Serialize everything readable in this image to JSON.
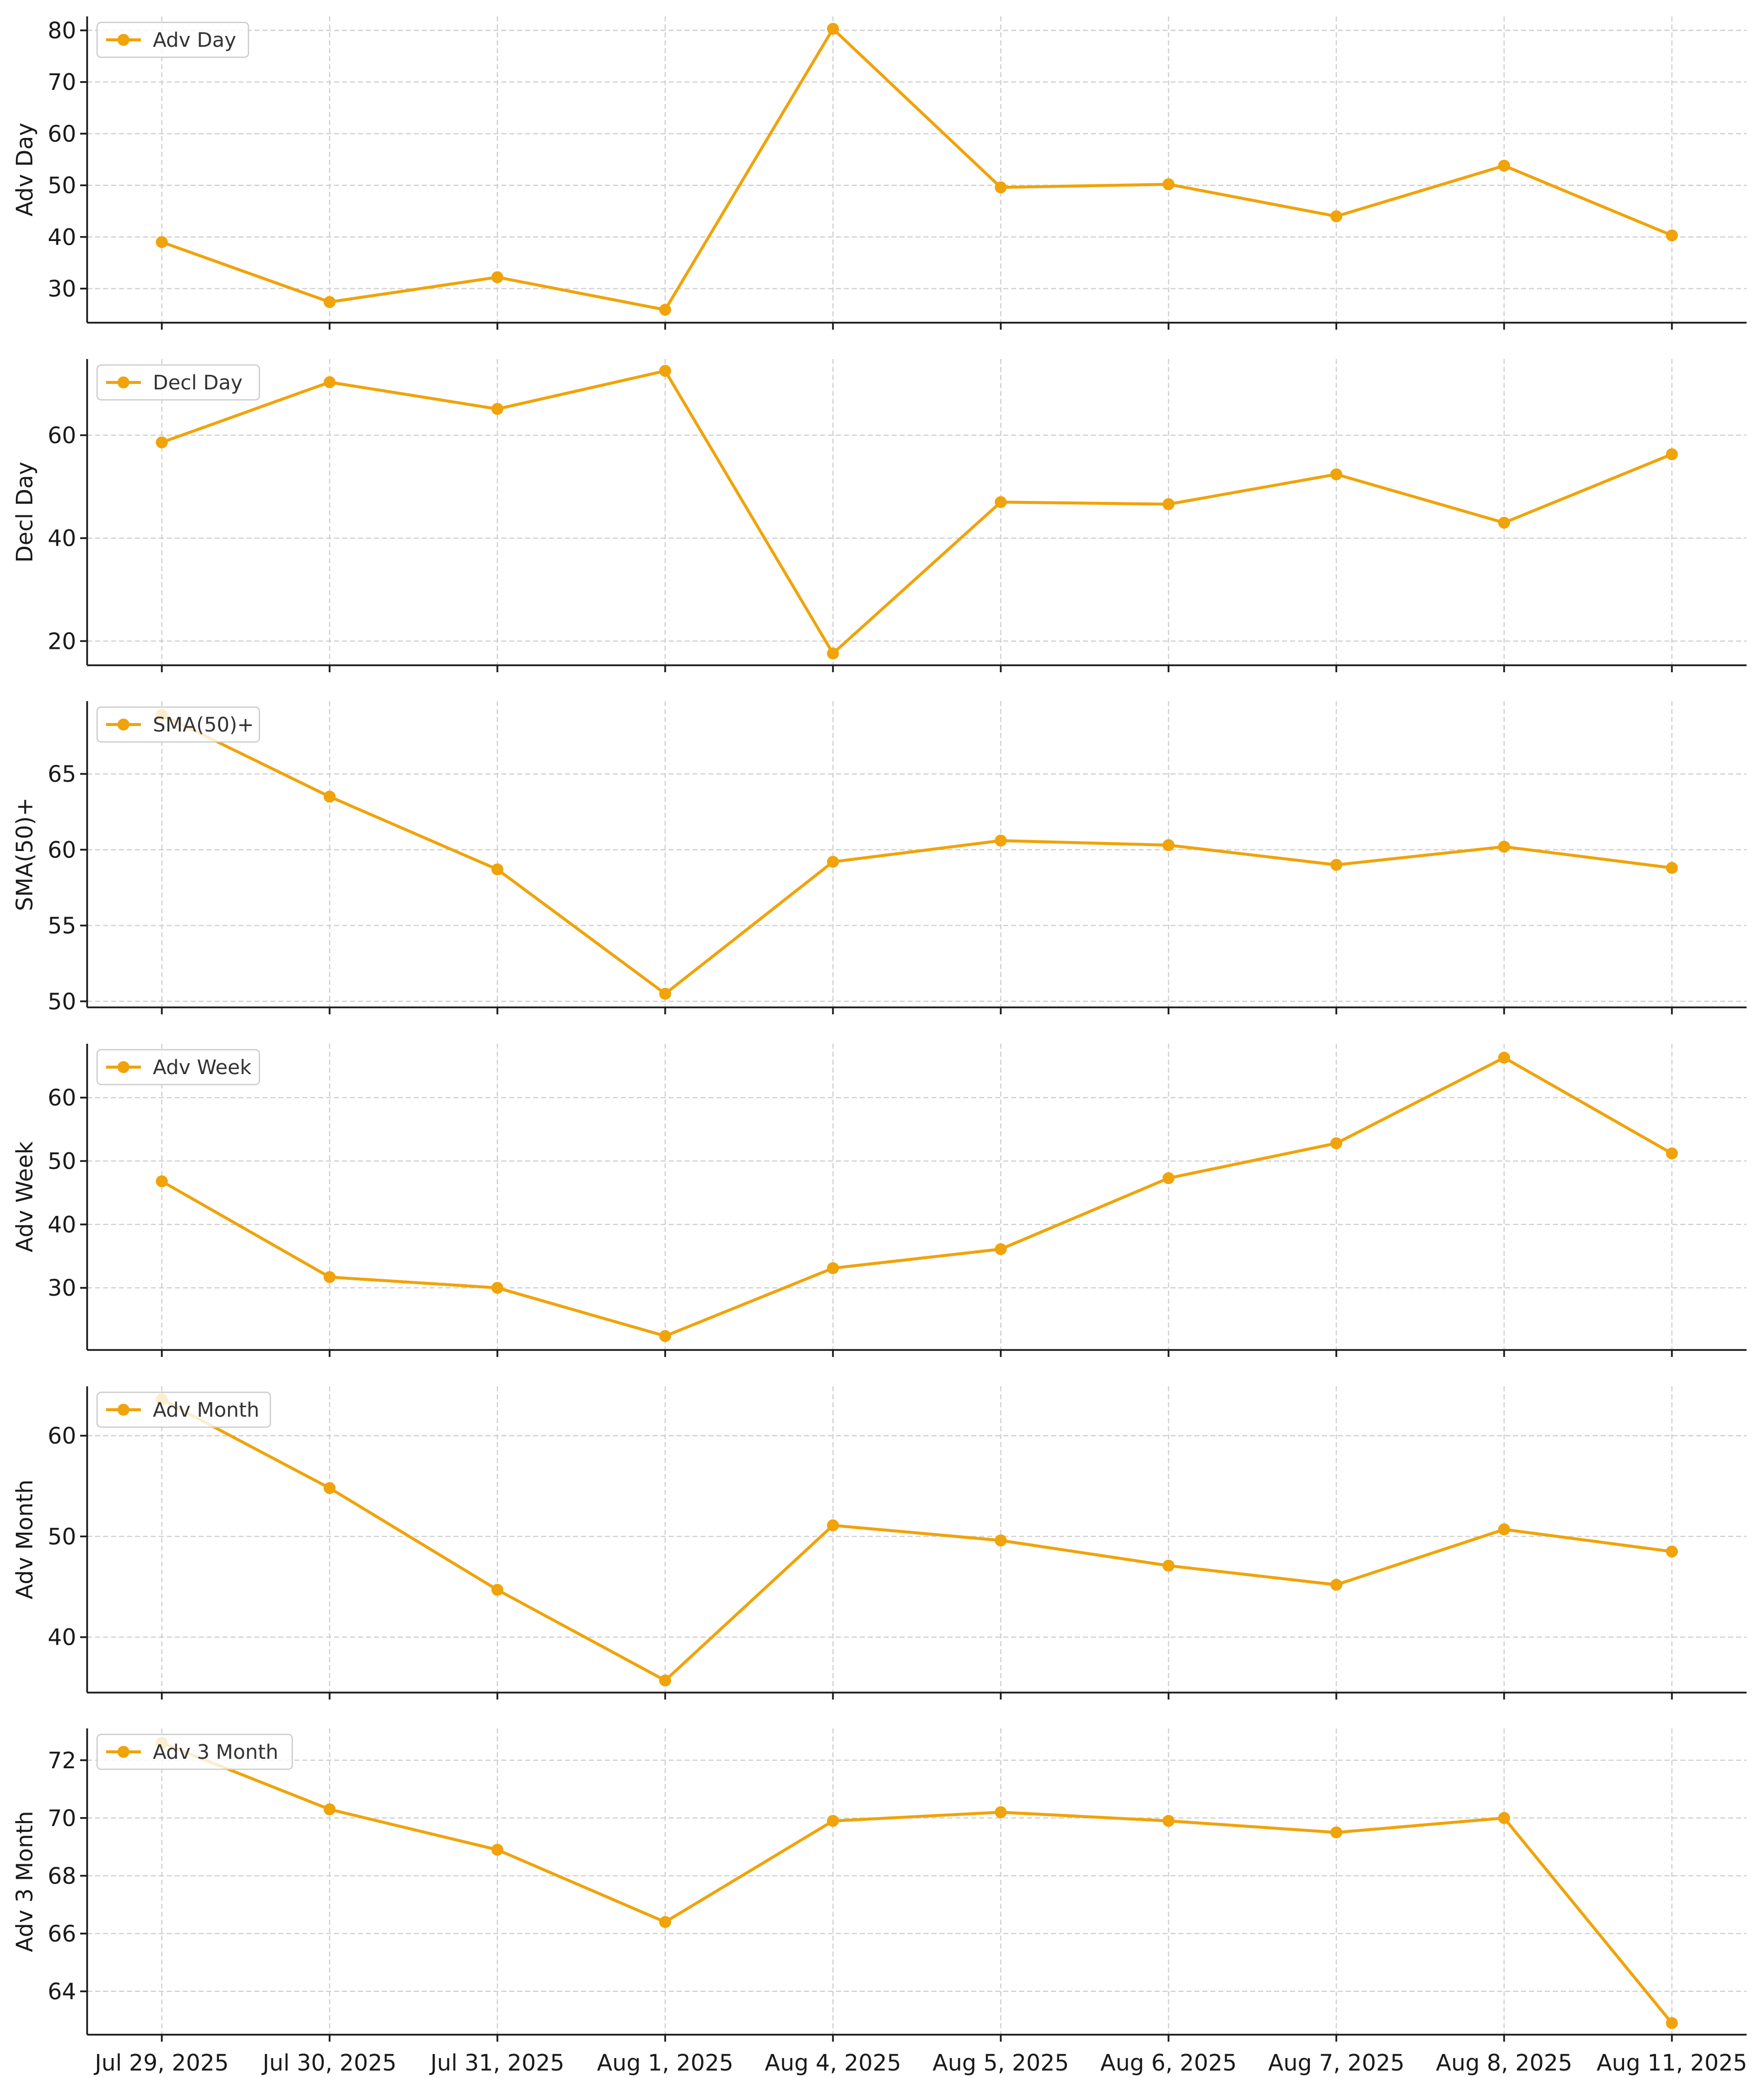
{
  "chart_data": {
    "type": "line",
    "colors": {
      "series": "#f0a30a"
    },
    "grid": true,
    "categories": [
      "Jul 29, 2025",
      "Jul 30, 2025",
      "Jul 31, 2025",
      "Aug 1, 2025",
      "Aug 4, 2025",
      "Aug 5, 2025",
      "Aug 6, 2025",
      "Aug 7, 2025",
      "Aug 8, 2025",
      "Aug 11, 2025"
    ],
    "panels": [
      {
        "series_name": "Adv Day",
        "ylabel": "Adv Day",
        "legend": "top-left",
        "ylim": [
          23.4,
          82.7
        ],
        "yticks": [
          30,
          40,
          50,
          60,
          70,
          80
        ],
        "values": [
          39.0,
          27.4,
          32.2,
          25.9,
          80.3,
          49.6,
          50.2,
          44.0,
          53.8,
          40.3
        ]
      },
      {
        "series_name": "Decl Day",
        "ylabel": "Decl Day",
        "legend": "top-left",
        "ylim": [
          15.3,
          74.8
        ],
        "yticks": [
          20,
          40,
          60
        ],
        "values": [
          58.6,
          70.3,
          65.1,
          72.5,
          17.6,
          47.0,
          46.6,
          52.4,
          43.0,
          56.3
        ]
      },
      {
        "series_name": "SMA(50)+",
        "ylabel": "SMA(50)+",
        "legend": "top-left",
        "ylim": [
          49.6,
          69.8
        ],
        "yticks": [
          50,
          55,
          60,
          65
        ],
        "values": [
          68.9,
          63.5,
          58.7,
          50.5,
          59.2,
          60.6,
          60.3,
          59.0,
          60.2,
          58.8
        ]
      },
      {
        "series_name": "Adv Week",
        "ylabel": "Adv Week",
        "legend": "top-left",
        "ylim": [
          20.2,
          68.5
        ],
        "yticks": [
          30,
          40,
          50,
          60
        ],
        "values": [
          46.8,
          31.7,
          30.0,
          22.4,
          33.1,
          36.1,
          47.3,
          52.8,
          66.3,
          51.2
        ]
      },
      {
        "series_name": "Adv Month",
        "ylabel": "Adv Month",
        "legend": "top-left",
        "ylim": [
          34.5,
          64.9
        ],
        "yticks": [
          40,
          50,
          60
        ],
        "values": [
          63.6,
          54.8,
          44.7,
          35.7,
          51.1,
          49.6,
          47.1,
          45.2,
          50.7,
          48.5
        ]
      },
      {
        "series_name": "Adv 3 Month",
        "ylabel": "Adv 3 Month",
        "legend": "top-left",
        "ylim": [
          62.5,
          73.1
        ],
        "yticks": [
          64,
          66,
          68,
          70,
          72
        ],
        "values": [
          72.6,
          70.3,
          68.9,
          66.4,
          69.9,
          70.2,
          69.9,
          69.5,
          70.0,
          62.9
        ]
      }
    ]
  }
}
